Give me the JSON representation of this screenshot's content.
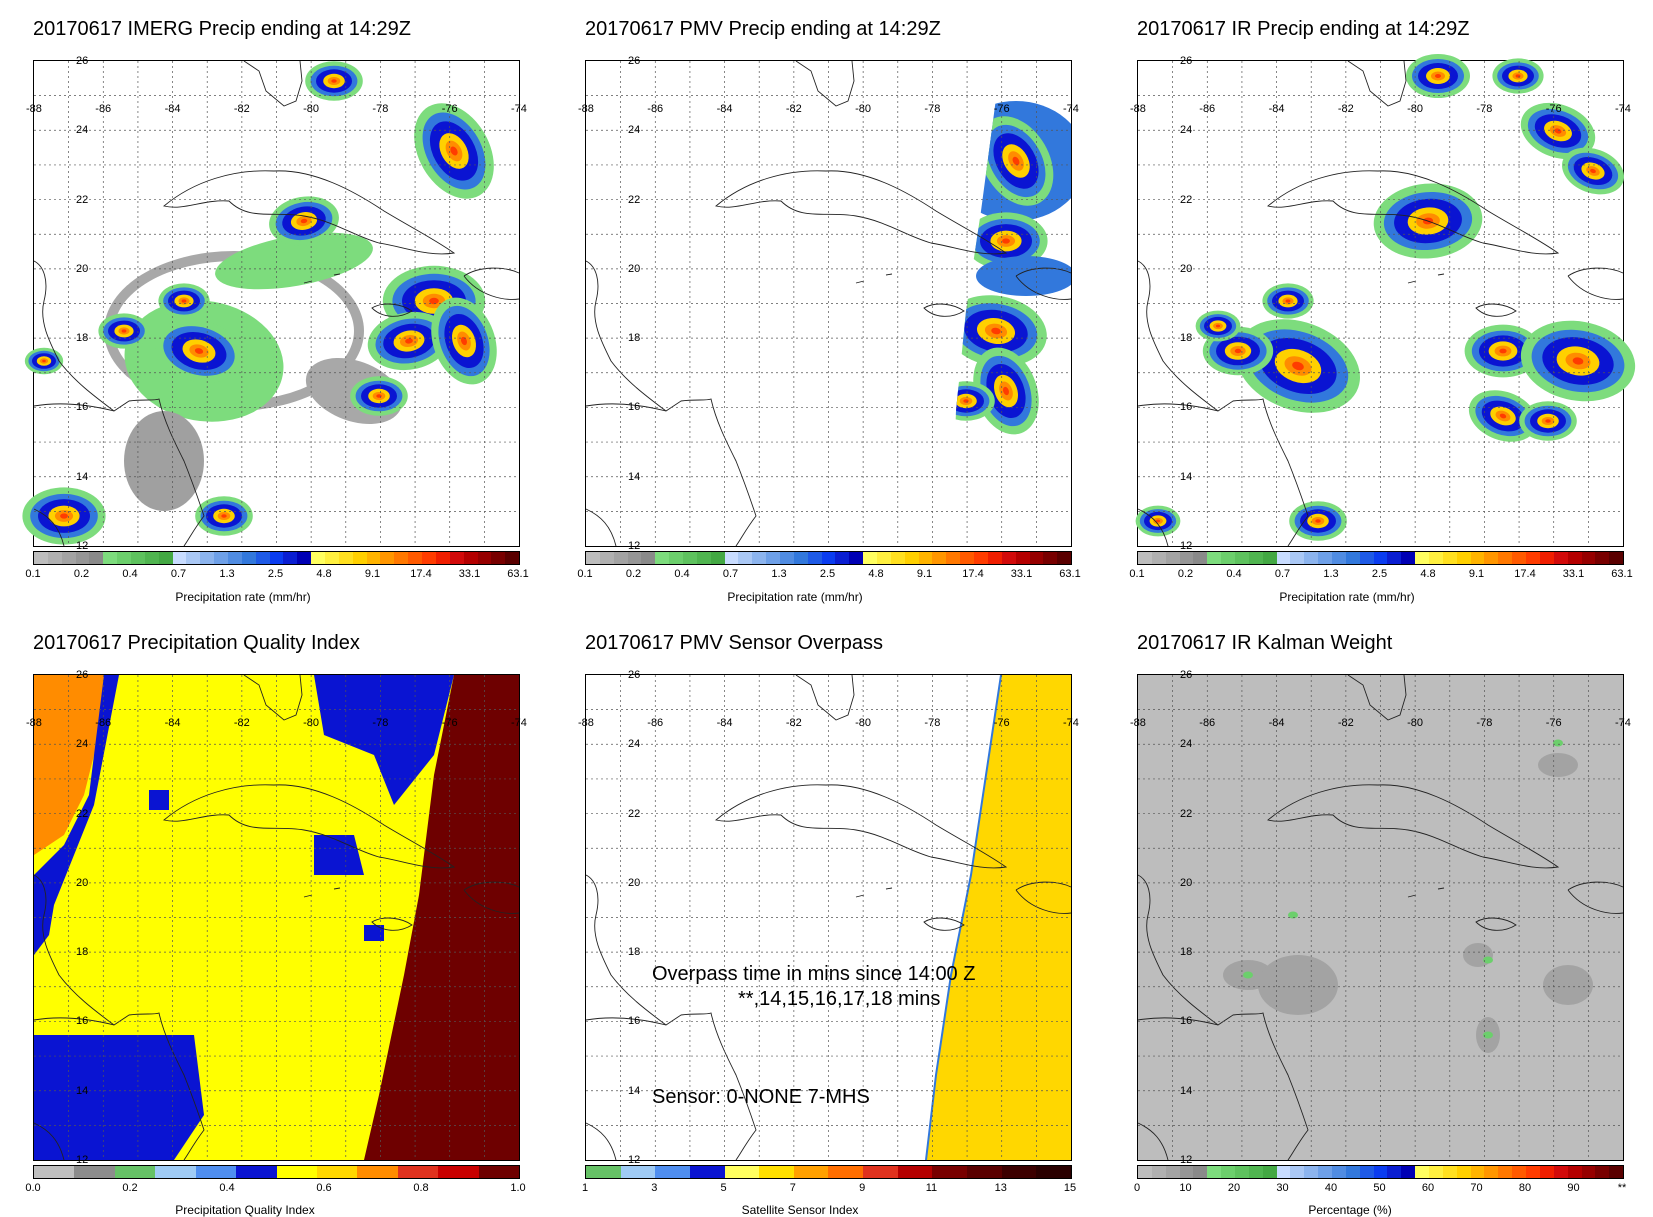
{
  "panels": [
    {
      "id": "imerg",
      "title": "20170617 IMERG Precip ending at 14:29Z"
    },
    {
      "id": "pmv",
      "title": "20170617 PMV Precip ending at 14:29Z"
    },
    {
      "id": "ir",
      "title": "20170617 IR Precip ending at 14:29Z"
    },
    {
      "id": "pqi",
      "title": "20170617 Precipitation Quality Index"
    },
    {
      "id": "overpass",
      "title": "20170617 PMV Sensor Overpass"
    },
    {
      "id": "kalman",
      "title": "20170617 IR Kalman Weight"
    }
  ],
  "map_axes": {
    "lon_labels": [
      "-88",
      "-86",
      "-84",
      "-82",
      "-80",
      "-78",
      "-76",
      "-74"
    ],
    "lat_labels": [
      "26",
      "24",
      "22",
      "20",
      "18",
      "16",
      "14",
      "12"
    ]
  },
  "colorbars": {
    "precip": {
      "label": "Precipitation rate (mm/hr)",
      "ticks": [
        "0.1",
        "0.2",
        "0.4",
        "0.7",
        "1.3",
        "2.5",
        "4.8",
        "9.1",
        "17.4",
        "33.1",
        "63.1"
      ],
      "colors": [
        "#bdbdbd",
        "#b0b0b0",
        "#a3a3a3",
        "#969696",
        "#8a8a8a",
        "#7ddc7d",
        "#6ccf6c",
        "#5ec25e",
        "#50b550",
        "#43a843",
        "#c8dcff",
        "#aac8f5",
        "#8cb4ee",
        "#6ea0e8",
        "#508ce2",
        "#3278dc",
        "#1e5ae6",
        "#0a3cf0",
        "#0a1ed2",
        "#0000b4",
        "#ffff60",
        "#fff040",
        "#ffe020",
        "#ffd000",
        "#ffb400",
        "#ff9600",
        "#ff7800",
        "#ff5a00",
        "#ff3c00",
        "#f01e00",
        "#d20a0a",
        "#b40000",
        "#960000",
        "#780000",
        "#5a0000"
      ]
    },
    "pqi": {
      "label": "Precipitation Quality Index",
      "ticks": [
        "0.0",
        "0.2",
        "0.4",
        "0.6",
        "0.8",
        "1.0"
      ],
      "colors": [
        "#bfbfbf",
        "#8c8c8c",
        "#66c266",
        "#9fcbf5",
        "#4f8ef0",
        "#0a14d2",
        "#ffff00",
        "#ffd700",
        "#ff8c00",
        "#e0321e",
        "#c80000",
        "#6e0000"
      ]
    },
    "sensor": {
      "label": "Satellite Sensor Index",
      "ticks": [
        "1",
        "3",
        "5",
        "7",
        "9",
        "11",
        "13",
        "15"
      ],
      "colors": [
        "#66c266",
        "#9fcbf5",
        "#4f8ef0",
        "#0a14d2",
        "#ffff60",
        "#ffe000",
        "#ffa000",
        "#ff6e00",
        "#e0321e",
        "#b40000",
        "#780000",
        "#5a0000",
        "#3c0000",
        "#2a0000"
      ]
    },
    "percentage": {
      "label": "Percentage (%)",
      "ticks": [
        "0",
        "10",
        "20",
        "30",
        "40",
        "50",
        "60",
        "70",
        "80",
        "90",
        "**"
      ],
      "colors": [
        "#bdbdbd",
        "#b0b0b0",
        "#a3a3a3",
        "#969696",
        "#8a8a8a",
        "#7ddc7d",
        "#6ccf6c",
        "#5ec25e",
        "#50b550",
        "#43a843",
        "#c8dcff",
        "#aac8f5",
        "#8cb4ee",
        "#6ea0e8",
        "#508ce2",
        "#3278dc",
        "#1e5ae6",
        "#0a3cf0",
        "#0a1ed2",
        "#0000b4",
        "#ffff60",
        "#fff040",
        "#ffe020",
        "#ffd000",
        "#ffb400",
        "#ff9600",
        "#ff7800",
        "#ff5a00",
        "#ff3c00",
        "#f01e00",
        "#d20a0a",
        "#b40000",
        "#960000",
        "#780000",
        "#5a0000"
      ]
    }
  },
  "overpass_annotation": {
    "line1": "Overpass time in mins since 14:00 Z",
    "line2": "**,14,15,16,17,18 mins",
    "sensor_line": "Sensor:   0-NONE  7-MHS"
  }
}
